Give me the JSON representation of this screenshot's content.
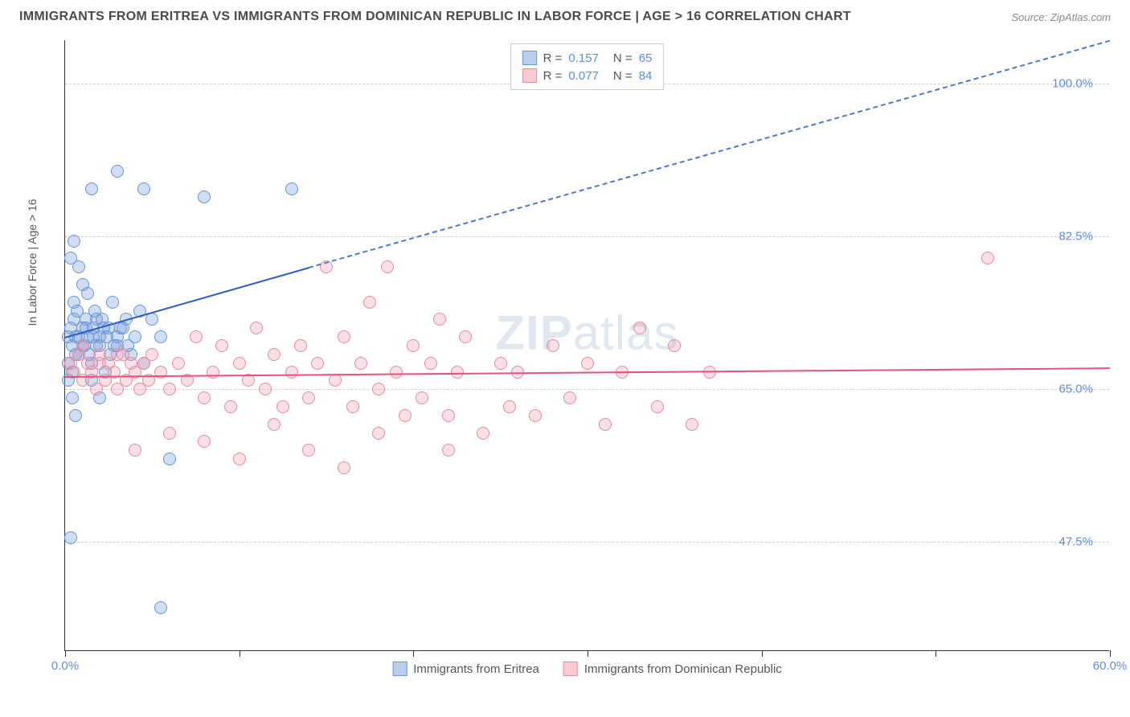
{
  "header": {
    "title": "IMMIGRANTS FROM ERITREA VS IMMIGRANTS FROM DOMINICAN REPUBLIC IN LABOR FORCE | AGE > 16 CORRELATION CHART",
    "source": "Source: ZipAtlas.com"
  },
  "chart": {
    "type": "scatter",
    "y_axis_label": "In Labor Force | Age > 16",
    "x_range": [
      0,
      60
    ],
    "y_range": [
      35,
      105
    ],
    "y_ticks": [
      {
        "value": 47.5,
        "label": "47.5%"
      },
      {
        "value": 65.0,
        "label": "65.0%"
      },
      {
        "value": 82.5,
        "label": "82.5%"
      },
      {
        "value": 100.0,
        "label": "100.0%"
      }
    ],
    "x_ticks": [
      {
        "value": 0,
        "label": "0.0%"
      },
      {
        "value": 10,
        "label": ""
      },
      {
        "value": 20,
        "label": ""
      },
      {
        "value": 30,
        "label": ""
      },
      {
        "value": 40,
        "label": ""
      },
      {
        "value": 50,
        "label": ""
      },
      {
        "value": 60,
        "label": "60.0%"
      }
    ],
    "grid_color": "#d0d0d0",
    "background_color": "#ffffff",
    "watermark": "ZIPatlas",
    "series": [
      {
        "name": "Immigrants from Eritrea",
        "color_fill": "rgba(120,160,220,0.35)",
        "color_stroke": "#6a95d6",
        "trend_color": "#2d5fc4",
        "r": "0.157",
        "n": "65",
        "trend": {
          "x1": 0,
          "y1": 71,
          "x2_solid": 14,
          "y2_solid": 79,
          "x2_dash": 60,
          "y2_dash": 105
        },
        "points": [
          [
            0.2,
            71
          ],
          [
            0.3,
            72
          ],
          [
            0.4,
            70
          ],
          [
            0.5,
            73
          ],
          [
            0.6,
            71
          ],
          [
            0.7,
            74
          ],
          [
            0.8,
            69
          ],
          [
            0.5,
            75
          ],
          [
            1.0,
            72
          ],
          [
            1.1,
            70
          ],
          [
            1.2,
            73
          ],
          [
            1.3,
            71
          ],
          [
            1.5,
            68
          ],
          [
            1.6,
            72
          ],
          [
            1.7,
            74
          ],
          [
            1.8,
            70
          ],
          [
            2.0,
            71
          ],
          [
            2.1,
            73
          ],
          [
            2.3,
            67
          ],
          [
            2.5,
            72
          ],
          [
            2.7,
            75
          ],
          [
            3.0,
            70
          ],
          [
            3.2,
            72
          ],
          [
            3.5,
            73
          ],
          [
            3.8,
            69
          ],
          [
            4.0,
            71
          ],
          [
            4.3,
            74
          ],
          [
            4.5,
            68
          ],
          [
            0.3,
            80
          ],
          [
            0.5,
            82
          ],
          [
            0.8,
            79
          ],
          [
            1.0,
            77
          ],
          [
            1.3,
            76
          ],
          [
            0.2,
            66
          ],
          [
            0.4,
            64
          ],
          [
            0.6,
            62
          ],
          [
            1.5,
            66
          ],
          [
            2.0,
            64
          ],
          [
            0.3,
            48
          ],
          [
            5.5,
            40
          ],
          [
            1.5,
            88
          ],
          [
            3.0,
            90
          ],
          [
            4.5,
            88
          ],
          [
            8.0,
            87
          ],
          [
            13.0,
            88
          ],
          [
            5.0,
            73
          ],
          [
            5.5,
            71
          ],
          [
            6.0,
            57
          ],
          [
            0.2,
            68
          ],
          [
            0.4,
            67
          ],
          [
            0.6,
            69
          ],
          [
            0.8,
            71
          ],
          [
            1.0,
            70
          ],
          [
            1.2,
            72
          ],
          [
            1.4,
            69
          ],
          [
            1.6,
            71
          ],
          [
            1.8,
            73
          ],
          [
            2.0,
            70
          ],
          [
            2.2,
            72
          ],
          [
            2.4,
            71
          ],
          [
            2.6,
            69
          ],
          [
            2.8,
            70
          ],
          [
            3.0,
            71
          ],
          [
            3.3,
            72
          ],
          [
            3.6,
            70
          ]
        ]
      },
      {
        "name": "Immigrants from Dominican Republic",
        "color_fill": "rgba(240,150,170,0.3)",
        "color_stroke": "#e88ca0",
        "trend_color": "#e6537a",
        "r": "0.077",
        "n": "84",
        "trend": {
          "x1": 0,
          "y1": 66.5,
          "x2_solid": 60,
          "y2_solid": 67.5
        },
        "points": [
          [
            0.3,
            68
          ],
          [
            0.5,
            67
          ],
          [
            0.8,
            69
          ],
          [
            1.0,
            66
          ],
          [
            1.3,
            68
          ],
          [
            1.5,
            67
          ],
          [
            1.8,
            65
          ],
          [
            2.0,
            69
          ],
          [
            2.3,
            66
          ],
          [
            2.5,
            68
          ],
          [
            2.8,
            67
          ],
          [
            3.0,
            65
          ],
          [
            3.3,
            69
          ],
          [
            3.5,
            66
          ],
          [
            3.8,
            68
          ],
          [
            4.0,
            67
          ],
          [
            4.3,
            65
          ],
          [
            4.5,
            68
          ],
          [
            4.8,
            66
          ],
          [
            5.0,
            69
          ],
          [
            5.5,
            67
          ],
          [
            6.0,
            65
          ],
          [
            6.5,
            68
          ],
          [
            7.0,
            66
          ],
          [
            7.5,
            71
          ],
          [
            8.0,
            64
          ],
          [
            8.5,
            67
          ],
          [
            9.0,
            70
          ],
          [
            9.5,
            63
          ],
          [
            10.0,
            68
          ],
          [
            10.5,
            66
          ],
          [
            11.0,
            72
          ],
          [
            11.5,
            65
          ],
          [
            12.0,
            69
          ],
          [
            12.5,
            63
          ],
          [
            13.0,
            67
          ],
          [
            13.5,
            70
          ],
          [
            14.0,
            64
          ],
          [
            14.5,
            68
          ],
          [
            15.0,
            79
          ],
          [
            15.5,
            66
          ],
          [
            16.0,
            71
          ],
          [
            16.5,
            63
          ],
          [
            17.0,
            68
          ],
          [
            17.5,
            75
          ],
          [
            18.0,
            65
          ],
          [
            18.5,
            79
          ],
          [
            19.0,
            67
          ],
          [
            19.5,
            62
          ],
          [
            20.0,
            70
          ],
          [
            20.5,
            64
          ],
          [
            21.0,
            68
          ],
          [
            21.5,
            73
          ],
          [
            22.0,
            62
          ],
          [
            22.5,
            67
          ],
          [
            23.0,
            71
          ],
          [
            24.0,
            60
          ],
          [
            25.0,
            68
          ],
          [
            25.5,
            63
          ],
          [
            26.0,
            67
          ],
          [
            27.0,
            62
          ],
          [
            28.0,
            70
          ],
          [
            29.0,
            64
          ],
          [
            30.0,
            68
          ],
          [
            31.0,
            61
          ],
          [
            32.0,
            67
          ],
          [
            33.0,
            72
          ],
          [
            34.0,
            63
          ],
          [
            35.0,
            70
          ],
          [
            36.0,
            61
          ],
          [
            37.0,
            67
          ],
          [
            53.0,
            80
          ],
          [
            4.0,
            58
          ],
          [
            6.0,
            60
          ],
          [
            8.0,
            59
          ],
          [
            10.0,
            57
          ],
          [
            12.0,
            61
          ],
          [
            14.0,
            58
          ],
          [
            16.0,
            56
          ],
          [
            18.0,
            60
          ],
          [
            22.0,
            58
          ],
          [
            1.0,
            70
          ],
          [
            2.0,
            68
          ],
          [
            3.0,
            69
          ]
        ]
      }
    ],
    "legend_bottom": [
      {
        "swatch": "blue",
        "label": "Immigrants from Eritrea"
      },
      {
        "swatch": "pink",
        "label": "Immigrants from Dominican Republic"
      }
    ]
  }
}
